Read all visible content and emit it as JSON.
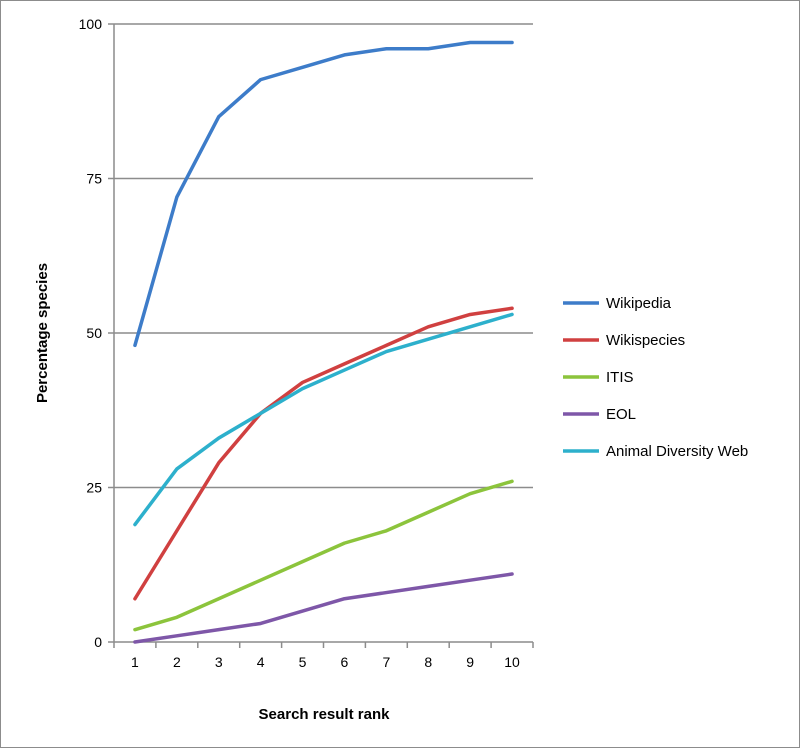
{
  "chart_data": {
    "type": "line",
    "title": "",
    "xlabel": "Search result rank",
    "ylabel": "Percentage species",
    "categories": [
      "1",
      "2",
      "3",
      "4",
      "5",
      "6",
      "7",
      "8",
      "9",
      "10"
    ],
    "yticks": [
      "0",
      "25",
      "50",
      "75",
      "100"
    ],
    "ylim": [
      0,
      100
    ],
    "grid": true,
    "legend_position": "right",
    "series": [
      {
        "name": "Wikipedia",
        "color": "#3d7cc9",
        "values": [
          48,
          72,
          85,
          91,
          93,
          95,
          96,
          96,
          97,
          97
        ]
      },
      {
        "name": "Wikispecies",
        "color": "#d04040",
        "values": [
          7,
          18,
          29,
          37,
          42,
          45,
          48,
          51,
          53,
          54
        ]
      },
      {
        "name": "ITIS",
        "color": "#8cc43c",
        "values": [
          2,
          4,
          7,
          10,
          13,
          16,
          18,
          21,
          24,
          26
        ]
      },
      {
        "name": "EOL",
        "color": "#7e57a8",
        "values": [
          0,
          1,
          2,
          3,
          5,
          7,
          8,
          9,
          10,
          11
        ]
      },
      {
        "name": "Animal Diversity Web",
        "color": "#2db0cc",
        "values": [
          19,
          28,
          33,
          37,
          41,
          44,
          47,
          49,
          51,
          53
        ]
      }
    ]
  }
}
